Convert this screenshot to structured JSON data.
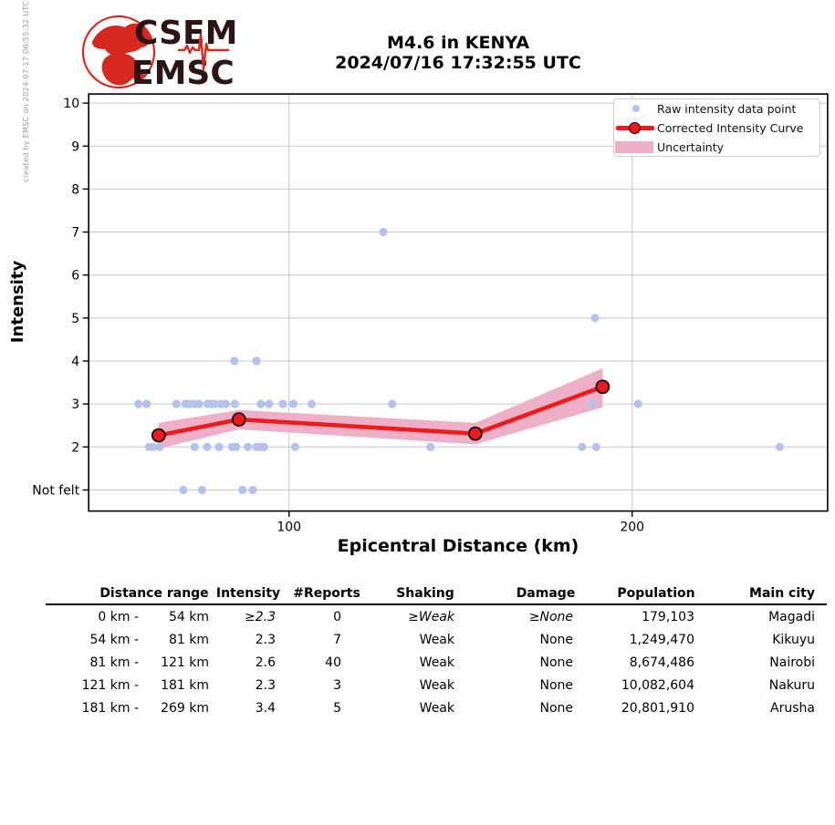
{
  "meta": {
    "created_by": "created by EMSC on 2024-07-17 06:55:32 UTC"
  },
  "logo": {
    "line1": "CSEM",
    "line2": "EMSC"
  },
  "chart_data": {
    "type": "scatter",
    "title": "M4.6 in KENYA",
    "subtitle": "2024/07/16 17:32:55 UTC",
    "xlabel": "Epicentral Distance (km)",
    "ylabel": "Intensity",
    "xlim": [
      42,
      257
    ],
    "ylim": [
      0.5,
      10.2
    ],
    "grid": true,
    "legend_position": "upper right",
    "xticks": [
      {
        "value": 100,
        "label": "100"
      },
      {
        "value": 200,
        "label": "200"
      }
    ],
    "yticks": [
      {
        "value": 10,
        "label": "10"
      },
      {
        "value": 9,
        "label": "9"
      },
      {
        "value": 8,
        "label": "8"
      },
      {
        "value": 7,
        "label": "7"
      },
      {
        "value": 6,
        "label": "6"
      },
      {
        "value": 5,
        "label": "5"
      },
      {
        "value": 4,
        "label": "4"
      },
      {
        "value": 3,
        "label": "3"
      },
      {
        "value": 2,
        "label": "2"
      },
      {
        "value": 1,
        "label": "Not felt"
      }
    ],
    "colors": {
      "raw_point": "#b4c3ec",
      "curve": "#ef1a1a",
      "band": "#eeb0c9",
      "grid": "#c8c8c8",
      "marker_edge": "#000000",
      "logo_red": "#d7281f",
      "logo_dark": "#2b1516"
    },
    "legend": [
      {
        "label": "Raw intensity data point",
        "marker": "dot"
      },
      {
        "label": "Corrected Intensity Curve",
        "marker": "line-dot"
      },
      {
        "label": "Uncertainty",
        "marker": "band"
      }
    ],
    "series": [
      {
        "name": "Raw intensity data point",
        "type": "scatter",
        "points": [
          [
            127.5,
            7
          ],
          [
            189.2,
            5
          ],
          [
            84.1,
            4
          ],
          [
            90.5,
            4
          ],
          [
            56.1,
            3
          ],
          [
            58.5,
            3
          ],
          [
            67.2,
            3
          ],
          [
            69.8,
            3
          ],
          [
            71,
            3
          ],
          [
            72.5,
            3
          ],
          [
            73.8,
            3
          ],
          [
            76.3,
            3
          ],
          [
            77.4,
            3
          ],
          [
            78.3,
            3
          ],
          [
            80.1,
            3
          ],
          [
            81.6,
            3
          ],
          [
            84.2,
            3
          ],
          [
            91.8,
            3
          ],
          [
            94.2,
            3
          ],
          [
            98.2,
            3
          ],
          [
            101.3,
            3
          ],
          [
            106.6,
            3
          ],
          [
            130.1,
            3
          ],
          [
            188.4,
            3
          ],
          [
            201.7,
            3
          ],
          [
            59.2,
            2
          ],
          [
            60.5,
            2
          ],
          [
            62.3,
            2
          ],
          [
            72.5,
            2
          ],
          [
            76.1,
            2
          ],
          [
            79.6,
            2
          ],
          [
            83.4,
            2
          ],
          [
            84.6,
            2
          ],
          [
            88,
            2
          ],
          [
            90.5,
            2
          ],
          [
            91.6,
            2
          ],
          [
            92.7,
            2
          ],
          [
            101.8,
            2
          ],
          [
            141.2,
            2
          ],
          [
            185.4,
            2
          ],
          [
            189.5,
            2
          ],
          [
            243,
            2
          ],
          [
            69.2,
            1
          ],
          [
            74.7,
            1
          ],
          [
            86.4,
            1
          ],
          [
            89.4,
            1
          ]
        ]
      },
      {
        "name": "Corrected Intensity Curve",
        "type": "line",
        "points": [
          [
            62,
            2.27
          ],
          [
            85.4,
            2.64
          ],
          [
            154.3,
            2.31
          ],
          [
            191.4,
            3.4
          ]
        ]
      },
      {
        "name": "Uncertainty",
        "type": "band",
        "upper": [
          [
            62,
            2.56
          ],
          [
            85.4,
            2.86
          ],
          [
            154.3,
            2.56
          ],
          [
            191.4,
            3.83
          ]
        ],
        "lower": [
          [
            62,
            1.96
          ],
          [
            85.4,
            2.41
          ],
          [
            154.3,
            2.06
          ],
          [
            191.4,
            2.92
          ]
        ]
      }
    ]
  },
  "table": {
    "columns": [
      "Distance range",
      "Intensity",
      "#Reports",
      "Shaking",
      "Damage",
      "Population",
      "Main city"
    ],
    "rows": [
      {
        "range_from": "0 km -",
        "range_to": "54 km",
        "intensity": "≥2.3",
        "reports": "0",
        "shaking": "≥Weak",
        "damage": "≥None",
        "population": "179,103",
        "main_city": "Magadi",
        "lower_bound": true
      },
      {
        "range_from": "54 km -",
        "range_to": "81 km",
        "intensity": "2.3",
        "reports": "7",
        "shaking": "Weak",
        "damage": "None",
        "population": "1,249,470",
        "main_city": "Kikuyu",
        "lower_bound": false
      },
      {
        "range_from": "81 km -",
        "range_to": "121 km",
        "intensity": "2.6",
        "reports": "40",
        "shaking": "Weak",
        "damage": "None",
        "population": "8,674,486",
        "main_city": "Nairobi",
        "lower_bound": false
      },
      {
        "range_from": "121 km -",
        "range_to": "181 km",
        "intensity": "2.3",
        "reports": "3",
        "shaking": "Weak",
        "damage": "None",
        "population": "10,082,604",
        "main_city": "Nakuru",
        "lower_bound": false
      },
      {
        "range_from": "181 km -",
        "range_to": "269 km",
        "intensity": "3.4",
        "reports": "5",
        "shaking": "Weak",
        "damage": "None",
        "population": "20,801,910",
        "main_city": "Arusha",
        "lower_bound": false
      }
    ]
  }
}
